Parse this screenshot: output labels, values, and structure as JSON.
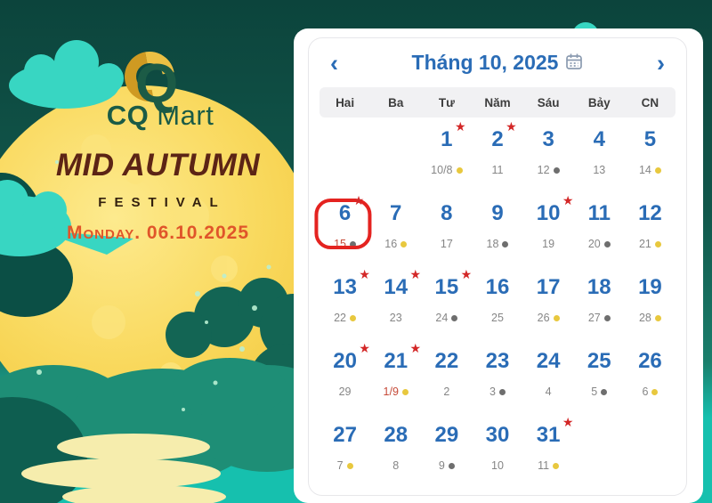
{
  "poster": {
    "logo": {
      "q_letter": "Q",
      "brand_bold": "CQ",
      "brand_light": " Mart",
      "icon": "cq-logo-icon"
    },
    "title": "MID AUTUMN",
    "subtitle": "FESTIVAL",
    "date_text": "Monday. 06.10.2025",
    "colors": {
      "sky_dark": "#0c443c",
      "sky_mid": "#136051",
      "water": "#16c0ae",
      "moon": "#f7d348",
      "cloud": "#38d6c2",
      "reflection": "#f6edad",
      "title": "#5c2415",
      "subtitle": "#33200e",
      "date_text": "#e0552a",
      "brand_green": "#1a5b46",
      "logo_gold": "#cf9a22"
    }
  },
  "calendar": {
    "title": "Tháng 10, 2025",
    "prev_label": "‹",
    "next_label": "›",
    "icons": {
      "prev": "chevron-left-icon",
      "next": "chevron-right-icon",
      "title": "calendar-icon",
      "event": "star-icon",
      "selected_day": "highlight-ring"
    },
    "day_headers": [
      "Hai",
      "Ba",
      "Tư",
      "Năm",
      "Sáu",
      "Bảy",
      "CN"
    ],
    "weeks": [
      [
        {},
        {},
        {
          "day": "1",
          "star": true,
          "lunar": "10/8",
          "dot": "yellow"
        },
        {
          "day": "2",
          "star": true,
          "lunar": "11"
        },
        {
          "day": "3",
          "lunar": "12",
          "dot": "gray"
        },
        {
          "day": "4",
          "lunar": "13"
        },
        {
          "day": "5",
          "lunar": "14",
          "dot": "yellow"
        }
      ],
      [
        {
          "day": "6",
          "star": true,
          "circled": true,
          "lunar": "15",
          "lunar_red": true,
          "dot": "gray"
        },
        {
          "day": "7",
          "lunar": "16",
          "dot": "yellow"
        },
        {
          "day": "8",
          "lunar": "17"
        },
        {
          "day": "9",
          "lunar": "18",
          "dot": "gray"
        },
        {
          "day": "10",
          "star": true,
          "lunar": "19"
        },
        {
          "day": "11",
          "lunar": "20",
          "dot": "gray"
        },
        {
          "day": "12",
          "lunar": "21",
          "dot": "yellow"
        }
      ],
      [
        {
          "day": "13",
          "star": true,
          "lunar": "22",
          "dot": "yellow"
        },
        {
          "day": "14",
          "star": true,
          "lunar": "23"
        },
        {
          "day": "15",
          "star": true,
          "lunar": "24",
          "dot": "gray"
        },
        {
          "day": "16",
          "lunar": "25"
        },
        {
          "day": "17",
          "lunar": "26",
          "dot": "yellow"
        },
        {
          "day": "18",
          "lunar": "27",
          "dot": "gray"
        },
        {
          "day": "19",
          "lunar": "28",
          "dot": "yellow"
        }
      ],
      [
        {
          "day": "20",
          "star": true,
          "lunar": "29"
        },
        {
          "day": "21",
          "star": true,
          "lunar": "1/9",
          "lunar_red": true,
          "dot": "yellow"
        },
        {
          "day": "22",
          "lunar": "2"
        },
        {
          "day": "23",
          "lunar": "3",
          "dot": "gray"
        },
        {
          "day": "24",
          "lunar": "4"
        },
        {
          "day": "25",
          "lunar": "5",
          "dot": "gray"
        },
        {
          "day": "26",
          "lunar": "6",
          "dot": "yellow"
        }
      ],
      [
        {
          "day": "27",
          "lunar": "7",
          "dot": "yellow"
        },
        {
          "day": "28",
          "lunar": "8"
        },
        {
          "day": "29",
          "lunar": "9",
          "dot": "gray"
        },
        {
          "day": "30",
          "lunar": "10"
        },
        {
          "day": "31",
          "star": true,
          "lunar": "11",
          "dot": "yellow"
        },
        {},
        {}
      ]
    ],
    "colors": {
      "accent": "#2a6cb6",
      "date": "#2a6cb6",
      "star": "#d32727",
      "highlight_ring": "#e42320",
      "lunar": "#868686",
      "lunar_red": "#c64a38",
      "dot_yellow": "#e8c83e",
      "dot_gray": "#6e6e6e",
      "day_header_text": "#3d3d3d",
      "day_header_bg": "#f1f1f3"
    }
  }
}
